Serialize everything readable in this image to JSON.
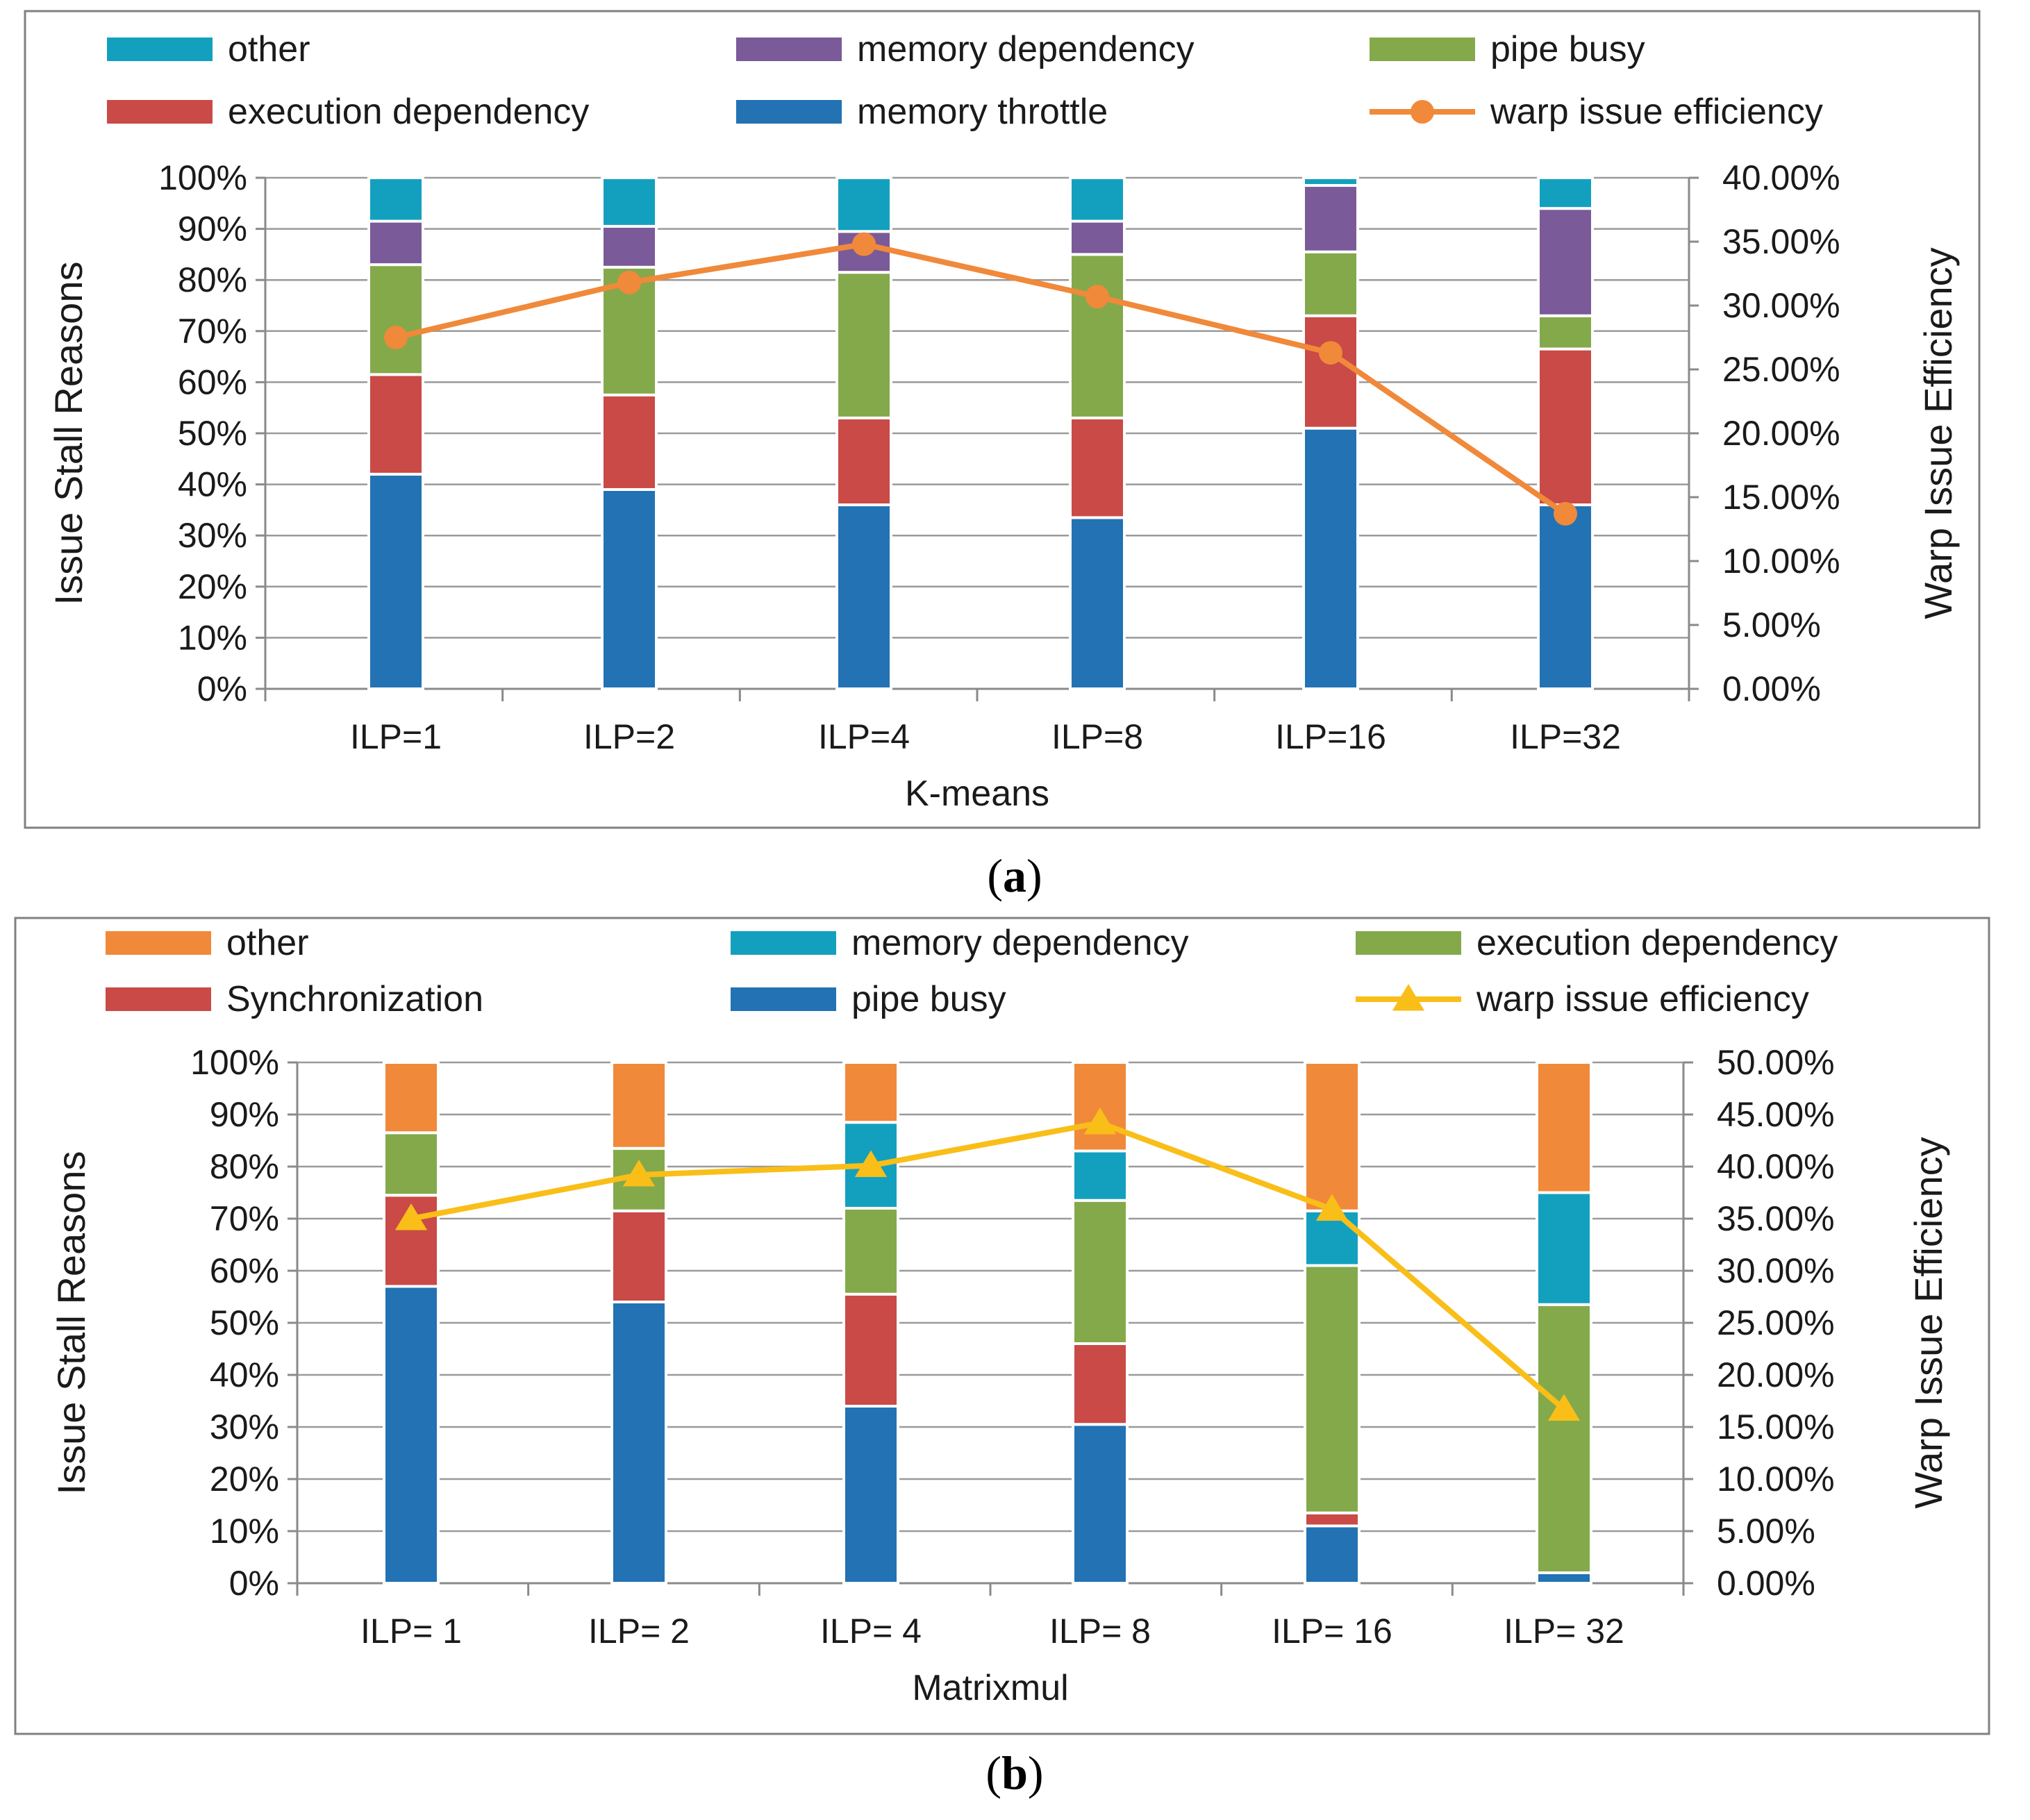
{
  "chart_data": [
    {
      "type": "bar",
      "stacked": true,
      "panel_caption": "(a)",
      "panel_letter": "a",
      "title": "",
      "xlabel": "K-means",
      "ylabel": "Issue Stall Reasons",
      "y2label": "Warp Issue Efficiency",
      "ylim": [
        0,
        100
      ],
      "y2lim": [
        0,
        40
      ],
      "yticks": [
        "0%",
        "10%",
        "20%",
        "30%",
        "40%",
        "50%",
        "60%",
        "70%",
        "80%",
        "90%",
        "100%"
      ],
      "y2ticks": [
        "0.00%",
        "5.00%",
        "10.00%",
        "15.00%",
        "20.00%",
        "25.00%",
        "30.00%",
        "35.00%",
        "40.00%"
      ],
      "categories": [
        "ILP=1",
        "ILP=2",
        "ILP=4",
        "ILP=8",
        "ILP=16",
        "ILP=32"
      ],
      "series": [
        {
          "name": "memory throttle",
          "color": "#2272b4",
          "values": [
            42,
            39,
            36,
            33.5,
            51,
            36
          ]
        },
        {
          "name": "execution dependency",
          "color": "#c94a46",
          "values": [
            19.5,
            18.5,
            17,
            19.5,
            22,
            30.5
          ]
        },
        {
          "name": "pipe busy",
          "color": "#84a94b",
          "values": [
            21.5,
            25,
            28.5,
            32,
            12.5,
            6.5
          ]
        },
        {
          "name": "memory dependency",
          "color": "#7a5a98",
          "values": [
            8.5,
            8,
            8,
            6.5,
            13,
            21
          ]
        },
        {
          "name": "other",
          "color": "#13a0bf",
          "values": [
            8.5,
            9.5,
            10.5,
            8.5,
            1.5,
            6
          ]
        }
      ],
      "line": {
        "name": "warp issue efficiency",
        "color": "#f0893a",
        "marker": "circle",
        "axis": "right",
        "values": [
          27.5,
          31.8,
          34.8,
          30.7,
          26.3,
          13.7
        ]
      },
      "legend_rows": [
        [
          "other",
          "memory dependency",
          "pipe busy"
        ],
        [
          "execution dependency",
          "memory throttle",
          "warp issue efficiency"
        ]
      ]
    },
    {
      "type": "bar",
      "stacked": true,
      "panel_caption": "(b)",
      "panel_letter": "b",
      "title": "",
      "xlabel": "Matrixmul",
      "ylabel": "Issue Stall Reasons",
      "y2label": "Warp Issue Efficiency",
      "ylim": [
        0,
        100
      ],
      "y2lim": [
        0,
        50
      ],
      "yticks": [
        "0%",
        "10%",
        "20%",
        "30%",
        "40%",
        "50%",
        "60%",
        "70%",
        "80%",
        "90%",
        "100%"
      ],
      "y2ticks": [
        "0.00%",
        "5.00%",
        "10.00%",
        "15.00%",
        "20.00%",
        "25.00%",
        "30.00%",
        "35.00%",
        "40.00%",
        "45.00%",
        "50.00%"
      ],
      "categories": [
        "ILP= 1",
        "ILP= 2",
        "ILP= 4",
        "ILP= 8",
        "ILP= 16",
        "ILP= 32"
      ],
      "series": [
        {
          "name": "pipe busy",
          "color": "#2272b4",
          "values": [
            57,
            54,
            34,
            30.5,
            11,
            2
          ]
        },
        {
          "name": "Synchronization",
          "color": "#c94a46",
          "values": [
            17.5,
            17.5,
            21.5,
            15.5,
            2.5,
            0
          ]
        },
        {
          "name": "execution dependency",
          "color": "#84a94b",
          "values": [
            12,
            12,
            16.5,
            27.5,
            47.5,
            51.5
          ]
        },
        {
          "name": "memory dependency",
          "color": "#13a0bf",
          "values": [
            0,
            0,
            16.5,
            9.5,
            10.5,
            21.5
          ]
        },
        {
          "name": "other",
          "color": "#f0893a",
          "values": [
            13.5,
            16.5,
            11.5,
            17,
            28.5,
            25
          ]
        }
      ],
      "line": {
        "name": "warp issue efficiency",
        "color": "#f9be18",
        "marker": "triangle",
        "axis": "right",
        "values": [
          35,
          39.2,
          40.1,
          44.2,
          35.9,
          16.7
        ]
      },
      "legend_rows": [
        [
          "other",
          "memory dependency",
          "execution dependency"
        ],
        [
          "Synchronization",
          "pipe busy",
          "warp issue efficiency"
        ]
      ]
    }
  ]
}
